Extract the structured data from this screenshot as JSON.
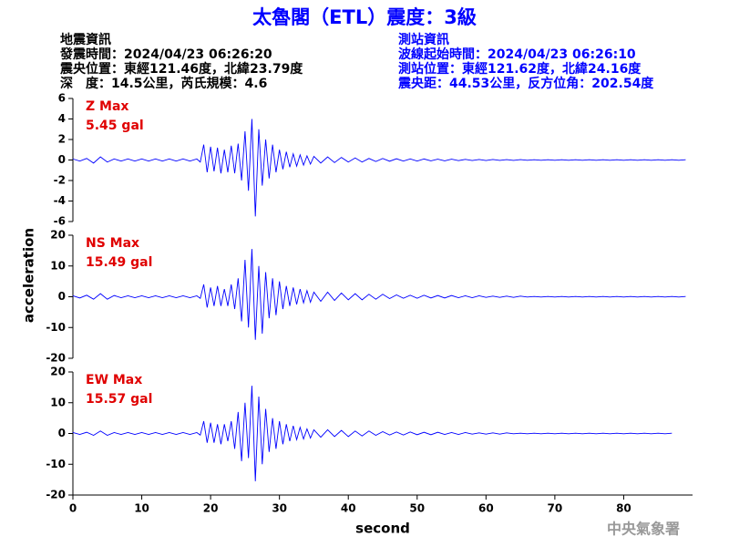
{
  "header": {
    "title": "太魯閣（ETL）震度：3級",
    "left": [
      "地震資訊",
      "發震時間：2024/04/23 06:26:20",
      "震央位置：東經121.46度，北緯23.79度",
      "深　度：14.5公里，芮氏規模：4.6"
    ],
    "right": [
      "測站資訊",
      "波線起始時間：2024/04/23 06:26:10",
      "測站位置：東經121.62度，北緯24.16度",
      "震央距：44.53公里，反方位角：202.54度"
    ],
    "credit": "中央氣象署"
  },
  "chart_data": {
    "type": "line",
    "xlabel": "second",
    "ylabel": "acceleration",
    "xlim": [
      0,
      90
    ],
    "xticks": [
      0,
      10,
      20,
      30,
      40,
      50,
      60,
      70,
      80
    ],
    "x": [
      0,
      1,
      2,
      3,
      4,
      5,
      6,
      7,
      8,
      9,
      10,
      11,
      12,
      13,
      14,
      15,
      16,
      17,
      18,
      18.5,
      19,
      19.5,
      20,
      20.5,
      21,
      21.5,
      22,
      22.5,
      23,
      23.5,
      24,
      24.5,
      25,
      25.5,
      26,
      26.5,
      27,
      27.5,
      28,
      28.5,
      29,
      29.5,
      30,
      30.5,
      31,
      31.5,
      32,
      32.5,
      33,
      33.5,
      34,
      34.5,
      35,
      36,
      37,
      38,
      39,
      40,
      41,
      42,
      43,
      44,
      45,
      46,
      47,
      48,
      49,
      50,
      51,
      52,
      53,
      54,
      55,
      56,
      57,
      58,
      59,
      60,
      61,
      62,
      63,
      64,
      65,
      66,
      67,
      68,
      69,
      70,
      71,
      72,
      73,
      74,
      75,
      76,
      77,
      78,
      79,
      80,
      81,
      82,
      83,
      84,
      85,
      86,
      87,
      88,
      89
    ],
    "panels": [
      {
        "name": "Z Max",
        "peak": "5.45 gal",
        "color": "#0000ff",
        "ylim": [
          -6,
          6
        ],
        "yticks": [
          -6,
          -4,
          -2,
          0,
          2,
          4,
          6
        ],
        "values": [
          0.1,
          -0.1,
          0.15,
          -0.3,
          0.3,
          -0.2,
          0.1,
          -0.1,
          0.1,
          -0.1,
          0.1,
          -0.1,
          0.1,
          -0.1,
          0.1,
          -0.1,
          0.1,
          -0.1,
          0.1,
          -0.2,
          1.5,
          -1.2,
          1.3,
          -1.1,
          1.2,
          -1.3,
          1.0,
          -1.2,
          1.4,
          -1.3,
          1.6,
          -2.0,
          2.8,
          -3.0,
          4.0,
          -5.5,
          3.0,
          -2.5,
          2.0,
          -1.8,
          1.5,
          -1.2,
          1.0,
          -0.9,
          0.8,
          -0.7,
          0.6,
          -0.6,
          0.5,
          -0.5,
          0.4,
          -0.4,
          0.35,
          -0.3,
          0.3,
          -0.25,
          0.25,
          -0.2,
          0.2,
          -0.2,
          0.15,
          -0.15,
          0.15,
          -0.12,
          0.12,
          -0.1,
          0.1,
          -0.1,
          0.1,
          -0.08,
          0.08,
          -0.08,
          0.08,
          -0.06,
          0.06,
          -0.05,
          0.05,
          -0.05,
          0.05,
          -0.04,
          0.04,
          -0.04,
          0.04,
          -0.03,
          0.03,
          -0.03,
          0.03,
          -0.03,
          0.03,
          -0.03,
          0.03,
          -0.03,
          0.03,
          -0.03,
          0.03,
          -0.03,
          0.03,
          -0.03,
          0.03,
          -0.03,
          0.03,
          -0.03,
          0.03,
          -0.03,
          0.03,
          -0.03,
          0.03
        ]
      },
      {
        "name": "NS Max",
        "peak": "15.49 gal",
        "color": "#0000ff",
        "ylim": [
          -20,
          20
        ],
        "yticks": [
          -20,
          -10,
          0,
          10,
          20
        ],
        "values": [
          0.3,
          -0.4,
          0.5,
          -0.8,
          1,
          -0.8,
          0.4,
          -0.3,
          0.3,
          -0.3,
          0.3,
          -0.3,
          0.3,
          -0.3,
          0.3,
          -0.3,
          0.3,
          -0.3,
          0.3,
          -0.5,
          4,
          -3.5,
          3,
          -3,
          3.5,
          -3,
          2.5,
          -3,
          4,
          -4,
          6,
          -8,
          12,
          -10,
          15.5,
          -14,
          10,
          -12,
          8,
          -7,
          6,
          -6,
          5,
          -4,
          3.5,
          -3,
          3,
          -2.5,
          2.5,
          -2,
          2,
          -1.8,
          1.5,
          -1.5,
          1.5,
          -1.2,
          1.2,
          -1,
          1,
          -1,
          0.8,
          -0.8,
          0.8,
          -0.6,
          0.6,
          -0.5,
          0.5,
          -0.5,
          0.5,
          -0.4,
          0.4,
          -0.4,
          0.4,
          -0.3,
          0.3,
          -0.3,
          0.3,
          -0.2,
          0.2,
          -0.2,
          0.2,
          -0.2,
          0.2,
          -0.1,
          0.1,
          -0.1,
          0.1,
          -0.1,
          0.1,
          -0.1,
          0.1,
          -0.1,
          0.1,
          -0.1,
          0.1,
          -0.1,
          0.1,
          -0.1,
          0.1,
          -0.1,
          0.1,
          -0.1,
          0.1,
          -0.1,
          0.1,
          -0.1,
          0.1
        ]
      },
      {
        "name": "EW Max",
        "peak": "15.57 gal",
        "color": "#0000ff",
        "ylim": [
          -20,
          20
        ],
        "yticks": [
          -20,
          -10,
          0,
          10,
          20
        ],
        "values": [
          0.3,
          -0.3,
          0.4,
          -0.6,
          0.8,
          -0.6,
          0.3,
          -0.3,
          0.3,
          -0.3,
          0.3,
          -0.3,
          0.3,
          -0.3,
          0.3,
          -0.3,
          0.3,
          -0.3,
          0.3,
          -0.5,
          4,
          -3,
          3.5,
          -3,
          3,
          -3.5,
          3,
          -2.5,
          4,
          -5,
          7,
          -9,
          10,
          -8,
          15.5,
          -15.5,
          12,
          -10,
          8,
          -6,
          5,
          -5,
          4,
          -3.5,
          3,
          -2.5,
          2.5,
          -2,
          2,
          -1.8,
          1.5,
          -1.5,
          1.2,
          -1.2,
          1.2,
          -1,
          1,
          -1,
          0.8,
          -0.8,
          0.8,
          -0.6,
          0.6,
          -0.5,
          0.5,
          -0.5,
          0.5,
          -0.4,
          0.4,
          -0.4,
          0.4,
          -0.3,
          0.3,
          -0.3,
          0.3,
          -0.2,
          0.2,
          -0.2,
          0.2,
          -0.2,
          0.2,
          -0.1,
          0.1,
          -0.1,
          0.1,
          -0.1,
          0.1,
          -0.1,
          0.1,
          -0.1,
          0.1,
          -0.1,
          0.1,
          -0.1,
          0.1,
          -0.1,
          0.1,
          -0.1,
          0.1,
          -0.1,
          0.1,
          -0.1,
          0.1,
          -0.1,
          0.1
        ]
      }
    ]
  }
}
